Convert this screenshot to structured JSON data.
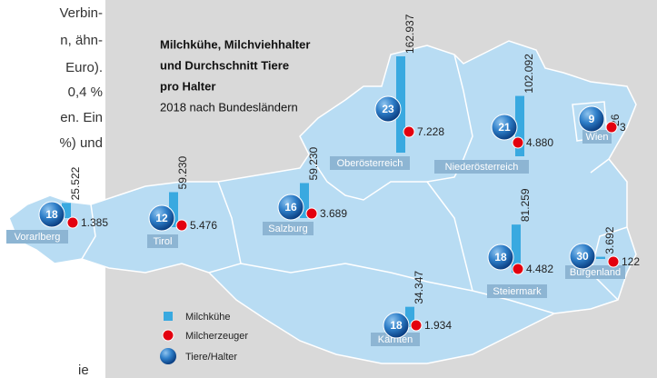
{
  "left_text": [
    "Verbin-",
    "n, ähn-",
    "Euro).",
    "0,4 %",
    "en. Ein",
    "%) und",
    "ie"
  ],
  "title_lines": [
    "Milchkühe, Milchviehhalter",
    "und Durchschnitt Tiere",
    "pro Halter"
  ],
  "subtitle": "2018 nach Bundesländern",
  "legend": [
    "Milchkühe",
    "Milcherzeuger",
    "Tiere/Halter"
  ],
  "regions": [
    {
      "name": "Vorarlberg",
      "cows": 25522,
      "cows_label": "25.522",
      "farmers": 1385,
      "farmers_label": "1.385",
      "per_holder": 18
    },
    {
      "name": "Tirol",
      "cows": 59230,
      "cows_label": "59.230",
      "farmers": 5476,
      "farmers_label": "5.476",
      "per_holder": 12
    },
    {
      "name": "Salzburg",
      "cows": 59230,
      "cows_label": "59.230",
      "farmers": 3689,
      "farmers_label": "3.689",
      "per_holder": 16
    },
    {
      "name": "Oberösterreich",
      "cows": 162937,
      "cows_label": "162.937",
      "farmers": 7228,
      "farmers_label": "7.228",
      "per_holder": 23
    },
    {
      "name": "Niederösterreich",
      "cows": 102092,
      "cows_label": "102.092",
      "farmers": 4880,
      "farmers_label": "4.880",
      "per_holder": 21
    },
    {
      "name": "Wien",
      "cows": 26,
      "farmers": 3,
      "per_holder": 9
    },
    {
      "name": "Steiermark",
      "cows": 81259,
      "cows_label": "81.259",
      "farmers": 4482,
      "farmers_label": "4.482",
      "per_holder": 18
    },
    {
      "name": "Burgenland",
      "cows": 3692,
      "cows_label": "3.692",
      "farmers": 122,
      "per_holder": 30
    },
    {
      "name": "Kärnten",
      "cows": 34347,
      "cows_label": "34.347",
      "farmers": 1934,
      "farmers_label": "1.934",
      "per_holder": 18
    }
  ]
}
